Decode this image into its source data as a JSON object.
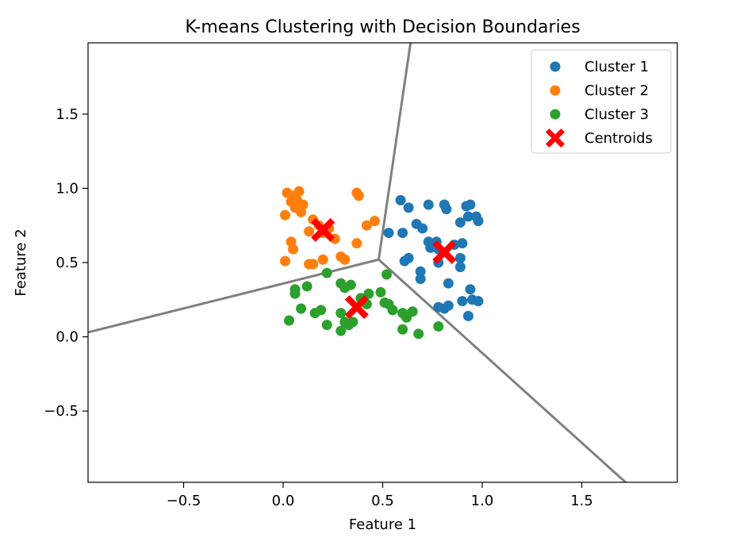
{
  "chart_data": {
    "type": "scatter",
    "title": "K-means Clustering with Decision Boundaries",
    "xlabel": "Feature 1",
    "ylabel": "Feature 2",
    "xlim": [
      -0.98,
      1.98
    ],
    "ylim": [
      -0.98,
      1.98
    ],
    "xticks": [
      -0.5,
      0.0,
      0.5,
      1.0,
      1.5
    ],
    "xtick_labels": [
      "−0.5",
      "0.0",
      "0.5",
      "1.0",
      "1.5"
    ],
    "yticks": [
      -0.5,
      0.0,
      0.5,
      1.0,
      1.5
    ],
    "ytick_labels": [
      "−0.5",
      "0.0",
      "0.5",
      "1.0",
      "1.5"
    ],
    "grid": false,
    "legend": "top-right",
    "series": [
      {
        "name": "Cluster 1",
        "color": "#1f77b4",
        "marker": "circle",
        "points": [
          [
            0.59,
            0.92
          ],
          [
            0.63,
            0.87
          ],
          [
            0.73,
            0.89
          ],
          [
            0.81,
            0.89
          ],
          [
            0.82,
            0.86
          ],
          [
            0.92,
            0.88
          ],
          [
            0.94,
            0.89
          ],
          [
            0.93,
            0.81
          ],
          [
            0.97,
            0.81
          ],
          [
            0.98,
            0.78
          ],
          [
            0.89,
            0.77
          ],
          [
            0.67,
            0.76
          ],
          [
            0.7,
            0.73
          ],
          [
            0.53,
            0.7
          ],
          [
            0.6,
            0.7
          ],
          [
            0.73,
            0.64
          ],
          [
            0.77,
            0.64
          ],
          [
            0.86,
            0.62
          ],
          [
            0.9,
            0.63
          ],
          [
            0.74,
            0.6
          ],
          [
            0.78,
            0.59
          ],
          [
            0.89,
            0.53
          ],
          [
            0.63,
            0.53
          ],
          [
            0.61,
            0.51
          ],
          [
            0.78,
            0.5
          ],
          [
            0.89,
            0.47
          ],
          [
            0.69,
            0.44
          ],
          [
            0.69,
            0.39
          ],
          [
            0.83,
            0.36
          ],
          [
            0.94,
            0.32
          ],
          [
            0.95,
            0.25
          ],
          [
            0.98,
            0.24
          ],
          [
            0.9,
            0.24
          ],
          [
            0.78,
            0.2
          ],
          [
            0.81,
            0.19
          ],
          [
            0.83,
            0.21
          ],
          [
            0.93,
            0.14
          ]
        ]
      },
      {
        "name": "Cluster 2",
        "color": "#ff7f0e",
        "marker": "circle",
        "points": [
          [
            0.02,
            0.97
          ],
          [
            0.05,
            0.95
          ],
          [
            0.08,
            0.98
          ],
          [
            0.04,
            0.91
          ],
          [
            0.07,
            0.92
          ],
          [
            0.06,
            0.87
          ],
          [
            0.1,
            0.89
          ],
          [
            0.09,
            0.84
          ],
          [
            0.37,
            0.97
          ],
          [
            0.38,
            0.95
          ],
          [
            0.01,
            0.82
          ],
          [
            0.15,
            0.79
          ],
          [
            0.18,
            0.75
          ],
          [
            0.23,
            0.73
          ],
          [
            0.46,
            0.78
          ],
          [
            0.42,
            0.75
          ],
          [
            0.13,
            0.71
          ],
          [
            0.2,
            0.7
          ],
          [
            0.26,
            0.66
          ],
          [
            0.04,
            0.64
          ],
          [
            0.05,
            0.59
          ],
          [
            0.37,
            0.63
          ],
          [
            0.29,
            0.54
          ],
          [
            0.31,
            0.52
          ],
          [
            0.2,
            0.52
          ],
          [
            0.01,
            0.51
          ],
          [
            0.13,
            0.49
          ],
          [
            0.15,
            0.49
          ]
        ]
      },
      {
        "name": "Cluster 3",
        "color": "#2ca02c",
        "marker": "circle",
        "points": [
          [
            0.06,
            0.32
          ],
          [
            0.06,
            0.29
          ],
          [
            0.12,
            0.34
          ],
          [
            0.03,
            0.11
          ],
          [
            0.09,
            0.19
          ],
          [
            0.16,
            0.16
          ],
          [
            0.19,
            0.18
          ],
          [
            0.22,
            0.43
          ],
          [
            0.22,
            0.08
          ],
          [
            0.29,
            0.36
          ],
          [
            0.31,
            0.33
          ],
          [
            0.34,
            0.35
          ],
          [
            0.29,
            0.16
          ],
          [
            0.31,
            0.1
          ],
          [
            0.33,
            0.08
          ],
          [
            0.35,
            0.1
          ],
          [
            0.29,
            0.04
          ],
          [
            0.39,
            0.26
          ],
          [
            0.43,
            0.29
          ],
          [
            0.42,
            0.22
          ],
          [
            0.49,
            0.3
          ],
          [
            0.52,
            0.42
          ],
          [
            0.51,
            0.23
          ],
          [
            0.53,
            0.22
          ],
          [
            0.55,
            0.18
          ],
          [
            0.6,
            0.16
          ],
          [
            0.61,
            0.15
          ],
          [
            0.62,
            0.13
          ],
          [
            0.65,
            0.17
          ],
          [
            0.6,
            0.05
          ],
          [
            0.68,
            0.02
          ],
          [
            0.78,
            0.07
          ]
        ]
      }
    ],
    "centroids": {
      "name": "Centroids",
      "color": "#ff0000",
      "marker": "X",
      "points": [
        [
          0.2,
          0.72
        ],
        [
          0.81,
          0.57
        ],
        [
          0.37,
          0.2
        ]
      ]
    },
    "decision_boundaries": {
      "color": "#808080",
      "lines": [
        [
          [
            0.48,
            0.52
          ],
          [
            0.64,
            1.98
          ]
        ],
        [
          [
            0.48,
            0.52
          ],
          [
            -0.98,
            0.03
          ]
        ],
        [
          [
            0.48,
            0.52
          ],
          [
            1.72,
            -0.98
          ]
        ]
      ]
    }
  }
}
